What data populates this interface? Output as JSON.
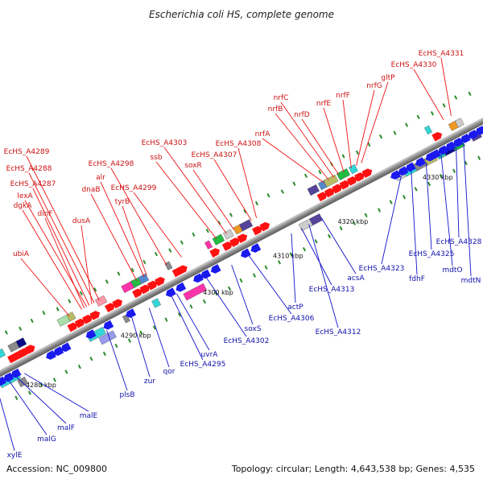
{
  "title": "Escherichia coli HS, complete genome",
  "footer": {
    "accession": "Accession: NC_009800",
    "summary": "Topology: circular; Length: 4,643,538 bp; Genes: 4,535"
  },
  "colors": {
    "forward": "#ff1111",
    "reverse": "#1a1aee",
    "backbone": "#9a9a9a",
    "top_label_line": "#ee1111",
    "bottom_label_line": "#1111cc",
    "dot": "#2a8a2a"
  },
  "ticks": [
    {
      "label": "4280 kbp",
      "t": 0.055
    },
    {
      "label": "4290 kbp",
      "t": 0.245
    },
    {
      "label": "4300 kbp",
      "t": 0.41
    },
    {
      "label": "4310 kbp",
      "t": 0.55
    },
    {
      "label": "4320 kbp",
      "t": 0.68
    },
    {
      "label": "4330 kbp",
      "t": 0.85
    }
  ],
  "top_labels": [
    {
      "text": "EcHS_A4331",
      "t": 0.92
    },
    {
      "text": "EcHS_A4330",
      "t": 0.905
    },
    {
      "text": "gltP",
      "t": 0.74
    },
    {
      "text": "nrfG",
      "t": 0.73
    },
    {
      "text": "nrfF",
      "t": 0.72
    },
    {
      "text": "nrfE",
      "t": 0.705
    },
    {
      "text": "nrfD",
      "t": 0.695
    },
    {
      "text": "nrfC",
      "t": 0.685
    },
    {
      "text": "nrfB",
      "t": 0.675
    },
    {
      "text": "nrfA",
      "t": 0.665
    },
    {
      "text": "EcHS_A4308",
      "t": 0.53
    },
    {
      "text": "EcHS_A4307",
      "t": 0.52
    },
    {
      "text": "soxR",
      "t": 0.485
    },
    {
      "text": "EcHS_A4303",
      "t": 0.47
    },
    {
      "text": "ssb",
      "t": 0.45
    },
    {
      "text": "EcHS_A4299",
      "t": 0.38
    },
    {
      "text": "EcHS_A4298",
      "t": 0.35
    },
    {
      "text": "tyrB",
      "t": 0.31
    },
    {
      "text": "alr",
      "t": 0.305
    },
    {
      "text": "dnaB",
      "t": 0.29
    },
    {
      "text": "EcHS_A4289",
      "t": 0.215
    },
    {
      "text": "EcHS_A4288",
      "t": 0.205
    },
    {
      "text": "dusA",
      "t": 0.2
    },
    {
      "text": "EcHS_A4287",
      "t": 0.195
    },
    {
      "text": "lexA",
      "t": 0.19
    },
    {
      "text": "dgkA",
      "t": 0.18
    },
    {
      "text": "dinF",
      "t": 0.185
    },
    {
      "text": "ubiA",
      "t": 0.155
    }
  ],
  "bottom_labels": [
    {
      "text": "xylE",
      "t": 0.01
    },
    {
      "text": "malG",
      "t": 0.035
    },
    {
      "text": "malF",
      "t": 0.05
    },
    {
      "text": "malE",
      "t": 0.065
    },
    {
      "text": "plsB",
      "t": 0.23
    },
    {
      "text": "zur",
      "t": 0.28
    },
    {
      "text": "qor",
      "t": 0.315
    },
    {
      "text": "EcHS_A4295",
      "t": 0.36
    },
    {
      "text": "uvrA",
      "t": 0.37
    },
    {
      "text": "EcHS_A4302",
      "t": 0.43
    },
    {
      "text": "soxS",
      "t": 0.48
    },
    {
      "text": "EcHS_A4306",
      "t": 0.515
    },
    {
      "text": "actP",
      "t": 0.6
    },
    {
      "text": "EcHS_A4313",
      "t": 0.62
    },
    {
      "text": "EcHS_A4312",
      "t": 0.635
    },
    {
      "text": "acsA",
      "t": 0.66
    },
    {
      "text": "EcHS_A4323",
      "t": 0.82
    },
    {
      "text": "fdhF",
      "t": 0.84
    },
    {
      "text": "EcHS_A4325",
      "t": 0.87
    },
    {
      "text": "mdtO",
      "t": 0.9
    },
    {
      "text": "EcHS_A4328",
      "t": 0.93
    },
    {
      "text": "mdtN",
      "t": 0.945
    }
  ]
}
